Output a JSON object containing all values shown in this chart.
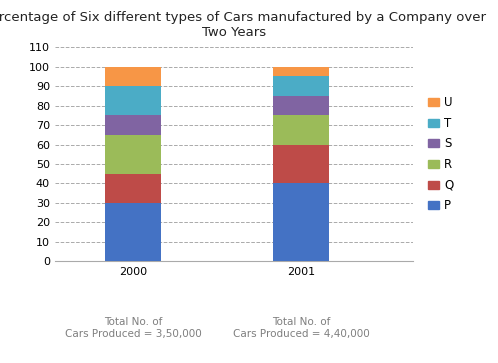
{
  "title": "Percentage of Six different types of Cars manufactured by a Company over\nTwo Years",
  "years": [
    "2000",
    "2001"
  ],
  "categories": [
    "P",
    "Q",
    "R",
    "S",
    "T",
    "U"
  ],
  "values": {
    "2000": [
      30,
      15,
      20,
      10,
      15,
      10
    ],
    "2001": [
      40,
      20,
      15,
      10,
      10,
      5
    ]
  },
  "colors": {
    "P": "#4472C4",
    "Q": "#BE4B48",
    "R": "#9BBB59",
    "S": "#8064A2",
    "T": "#4BACC6",
    "U": "#F79646"
  },
  "ylim": [
    0,
    110
  ],
  "yticks": [
    0,
    10,
    20,
    30,
    40,
    50,
    60,
    70,
    80,
    90,
    100,
    110
  ],
  "xlabel_notes": [
    "Total No. of\nCars Produced = 3,50,000",
    "Total No. of\nCars Produced = 4,40,000"
  ],
  "background_color": "#ffffff",
  "grid_color": "#aaaaaa",
  "label_color": "#7F7F7F",
  "title_fontsize": 9.5,
  "axis_fontsize": 8,
  "legend_fontsize": 8.5,
  "bar_width": 0.5,
  "x_positions": [
    1.0,
    2.5
  ],
  "xlim": [
    0.3,
    3.5
  ]
}
